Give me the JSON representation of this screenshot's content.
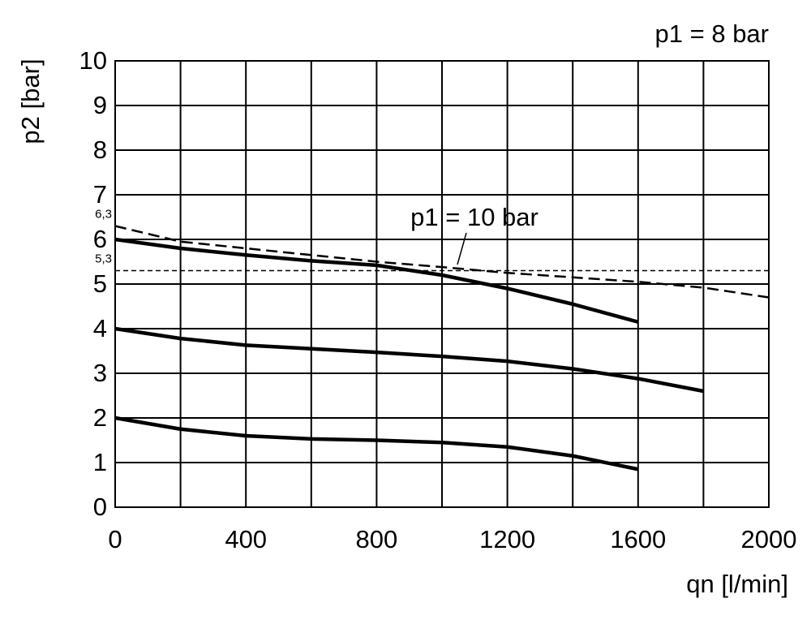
{
  "chart_data": {
    "type": "line",
    "y_label": "p2 [bar]",
    "x_label": "qn [l/min]",
    "annotations": [
      "p1 = 8 bar"
    ],
    "x": [
      0,
      200,
      400,
      600,
      800,
      1000,
      1200,
      1400,
      1600,
      1800,
      2000
    ],
    "series": [
      {
        "color": "#000000",
        "values": [
          6.0,
          5.8,
          5.65,
          5.52,
          5.42,
          5.2,
          4.9,
          4.55,
          4.15,
          null,
          null
        ]
      },
      {
        "color": "#000000",
        "values": [
          4.0,
          3.78,
          3.63,
          3.55,
          3.47,
          3.38,
          3.27,
          3.1,
          2.88,
          2.6,
          null
        ]
      },
      {
        "color": "#000000",
        "values": [
          2.0,
          1.75,
          1.6,
          1.53,
          1.5,
          1.45,
          1.35,
          1.15,
          0.85,
          null,
          null
        ]
      },
      {
        "name": "p1 = 10 bar",
        "color": "#000000",
        "style": "dash",
        "values": [
          6.3,
          5.95,
          5.8,
          5.65,
          5.5,
          5.38,
          5.25,
          5.15,
          5.05,
          4.92,
          4.7
        ]
      }
    ],
    "reference_labels": [
      {
        "value": 6.3,
        "label": "6,3"
      },
      {
        "value": 5.3,
        "label": "5,3",
        "line": "dash"
      }
    ],
    "xlim": [
      0,
      2000
    ],
    "ylim": [
      0,
      10
    ],
    "xticks": [
      0,
      400,
      800,
      1200,
      1600,
      2000
    ],
    "xminor_ticks": [
      200,
      600,
      1000,
      1400,
      1800
    ],
    "yticks": [
      0,
      1,
      2,
      3,
      4,
      5,
      6,
      7,
      8,
      9,
      10
    ],
    "grid": true
  }
}
